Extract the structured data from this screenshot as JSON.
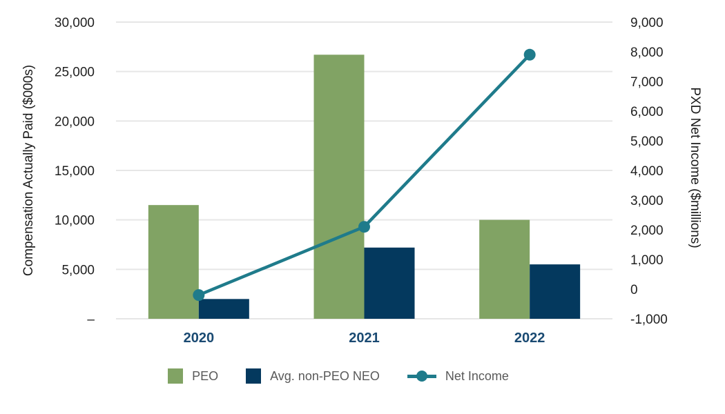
{
  "chart_data": {
    "type": "combo",
    "title": "",
    "categories": [
      "2020",
      "2021",
      "2022"
    ],
    "series": [
      {
        "name": "PEO",
        "type": "bar",
        "axis": "left",
        "color": "#81a364",
        "values": [
          11500,
          26700,
          10000
        ]
      },
      {
        "name": "Avg. non-PEO NEO",
        "type": "bar",
        "axis": "left",
        "color": "#04395e",
        "values": [
          2000,
          7200,
          5500
        ]
      },
      {
        "name": "Net Income",
        "type": "line",
        "axis": "right",
        "color": "#1f7b8b",
        "values": [
          -200,
          2100,
          7900
        ]
      }
    ],
    "ylabel_left": "Compensation Actually Paid ($000s)",
    "ylabel_right": "PXD Net Income ($millions)",
    "left_axis": {
      "min": 0,
      "max": 30000,
      "step": 5000,
      "ticks": [
        {
          "value": 30000,
          "label": "30,000"
        },
        {
          "value": 25000,
          "label": "25,000"
        },
        {
          "value": 20000,
          "label": "20,000"
        },
        {
          "value": 15000,
          "label": "15,000"
        },
        {
          "value": 10000,
          "label": "10,000"
        },
        {
          "value": 5000,
          "label": "5,000"
        },
        {
          "value": 0,
          "label": "–"
        }
      ]
    },
    "right_axis": {
      "min": -1000,
      "max": 9000,
      "step": 1000,
      "ticks": [
        {
          "value": 9000,
          "label": "9,000"
        },
        {
          "value": 8000,
          "label": "8,000"
        },
        {
          "value": 7000,
          "label": "7,000"
        },
        {
          "value": 6000,
          "label": "6,000"
        },
        {
          "value": 5000,
          "label": "5,000"
        },
        {
          "value": 4000,
          "label": "4,000"
        },
        {
          "value": 3000,
          "label": "3,000"
        },
        {
          "value": 2000,
          "label": "2,000"
        },
        {
          "value": 1000,
          "label": "1,000"
        },
        {
          "value": 0,
          "label": "0"
        },
        {
          "value": -1000,
          "label": "-1,000"
        }
      ]
    },
    "grid": true,
    "legend_position": "bottom",
    "colors": {
      "peo": "#81a364",
      "neo": "#04395e",
      "net_income": "#1f7b8b",
      "x_label": "#1a4a72",
      "legend_text": "#595959",
      "tick_text": "#1f1f1f",
      "gridline": "#e6e6e6",
      "background": "#ffffff"
    }
  }
}
